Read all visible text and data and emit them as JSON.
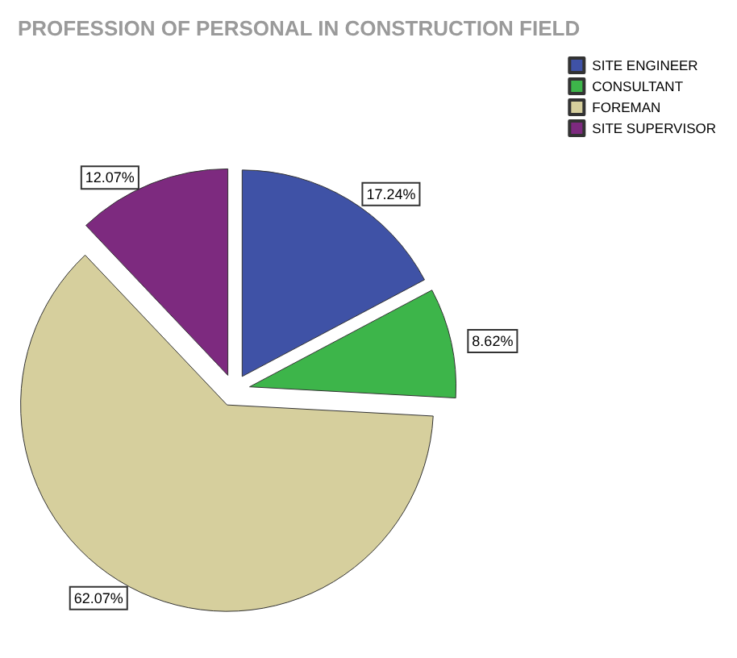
{
  "chart_data": {
    "type": "pie",
    "title": "PROFESSION OF PERSONAL IN CONSTRUCTION FIELD",
    "categories": [
      "SITE ENGINEER",
      "CONSULTANT",
      "FOREMAN",
      "SITE SUPERVISOR"
    ],
    "values": [
      17.24,
      8.62,
      62.07,
      12.07
    ],
    "value_labels": [
      "17.24%",
      "8.62%",
      "62.07%",
      "12.07%"
    ],
    "colors": [
      "#3f52a6",
      "#3db54a",
      "#d6cf9d",
      "#7d2a7f"
    ],
    "legend": "top right"
  }
}
